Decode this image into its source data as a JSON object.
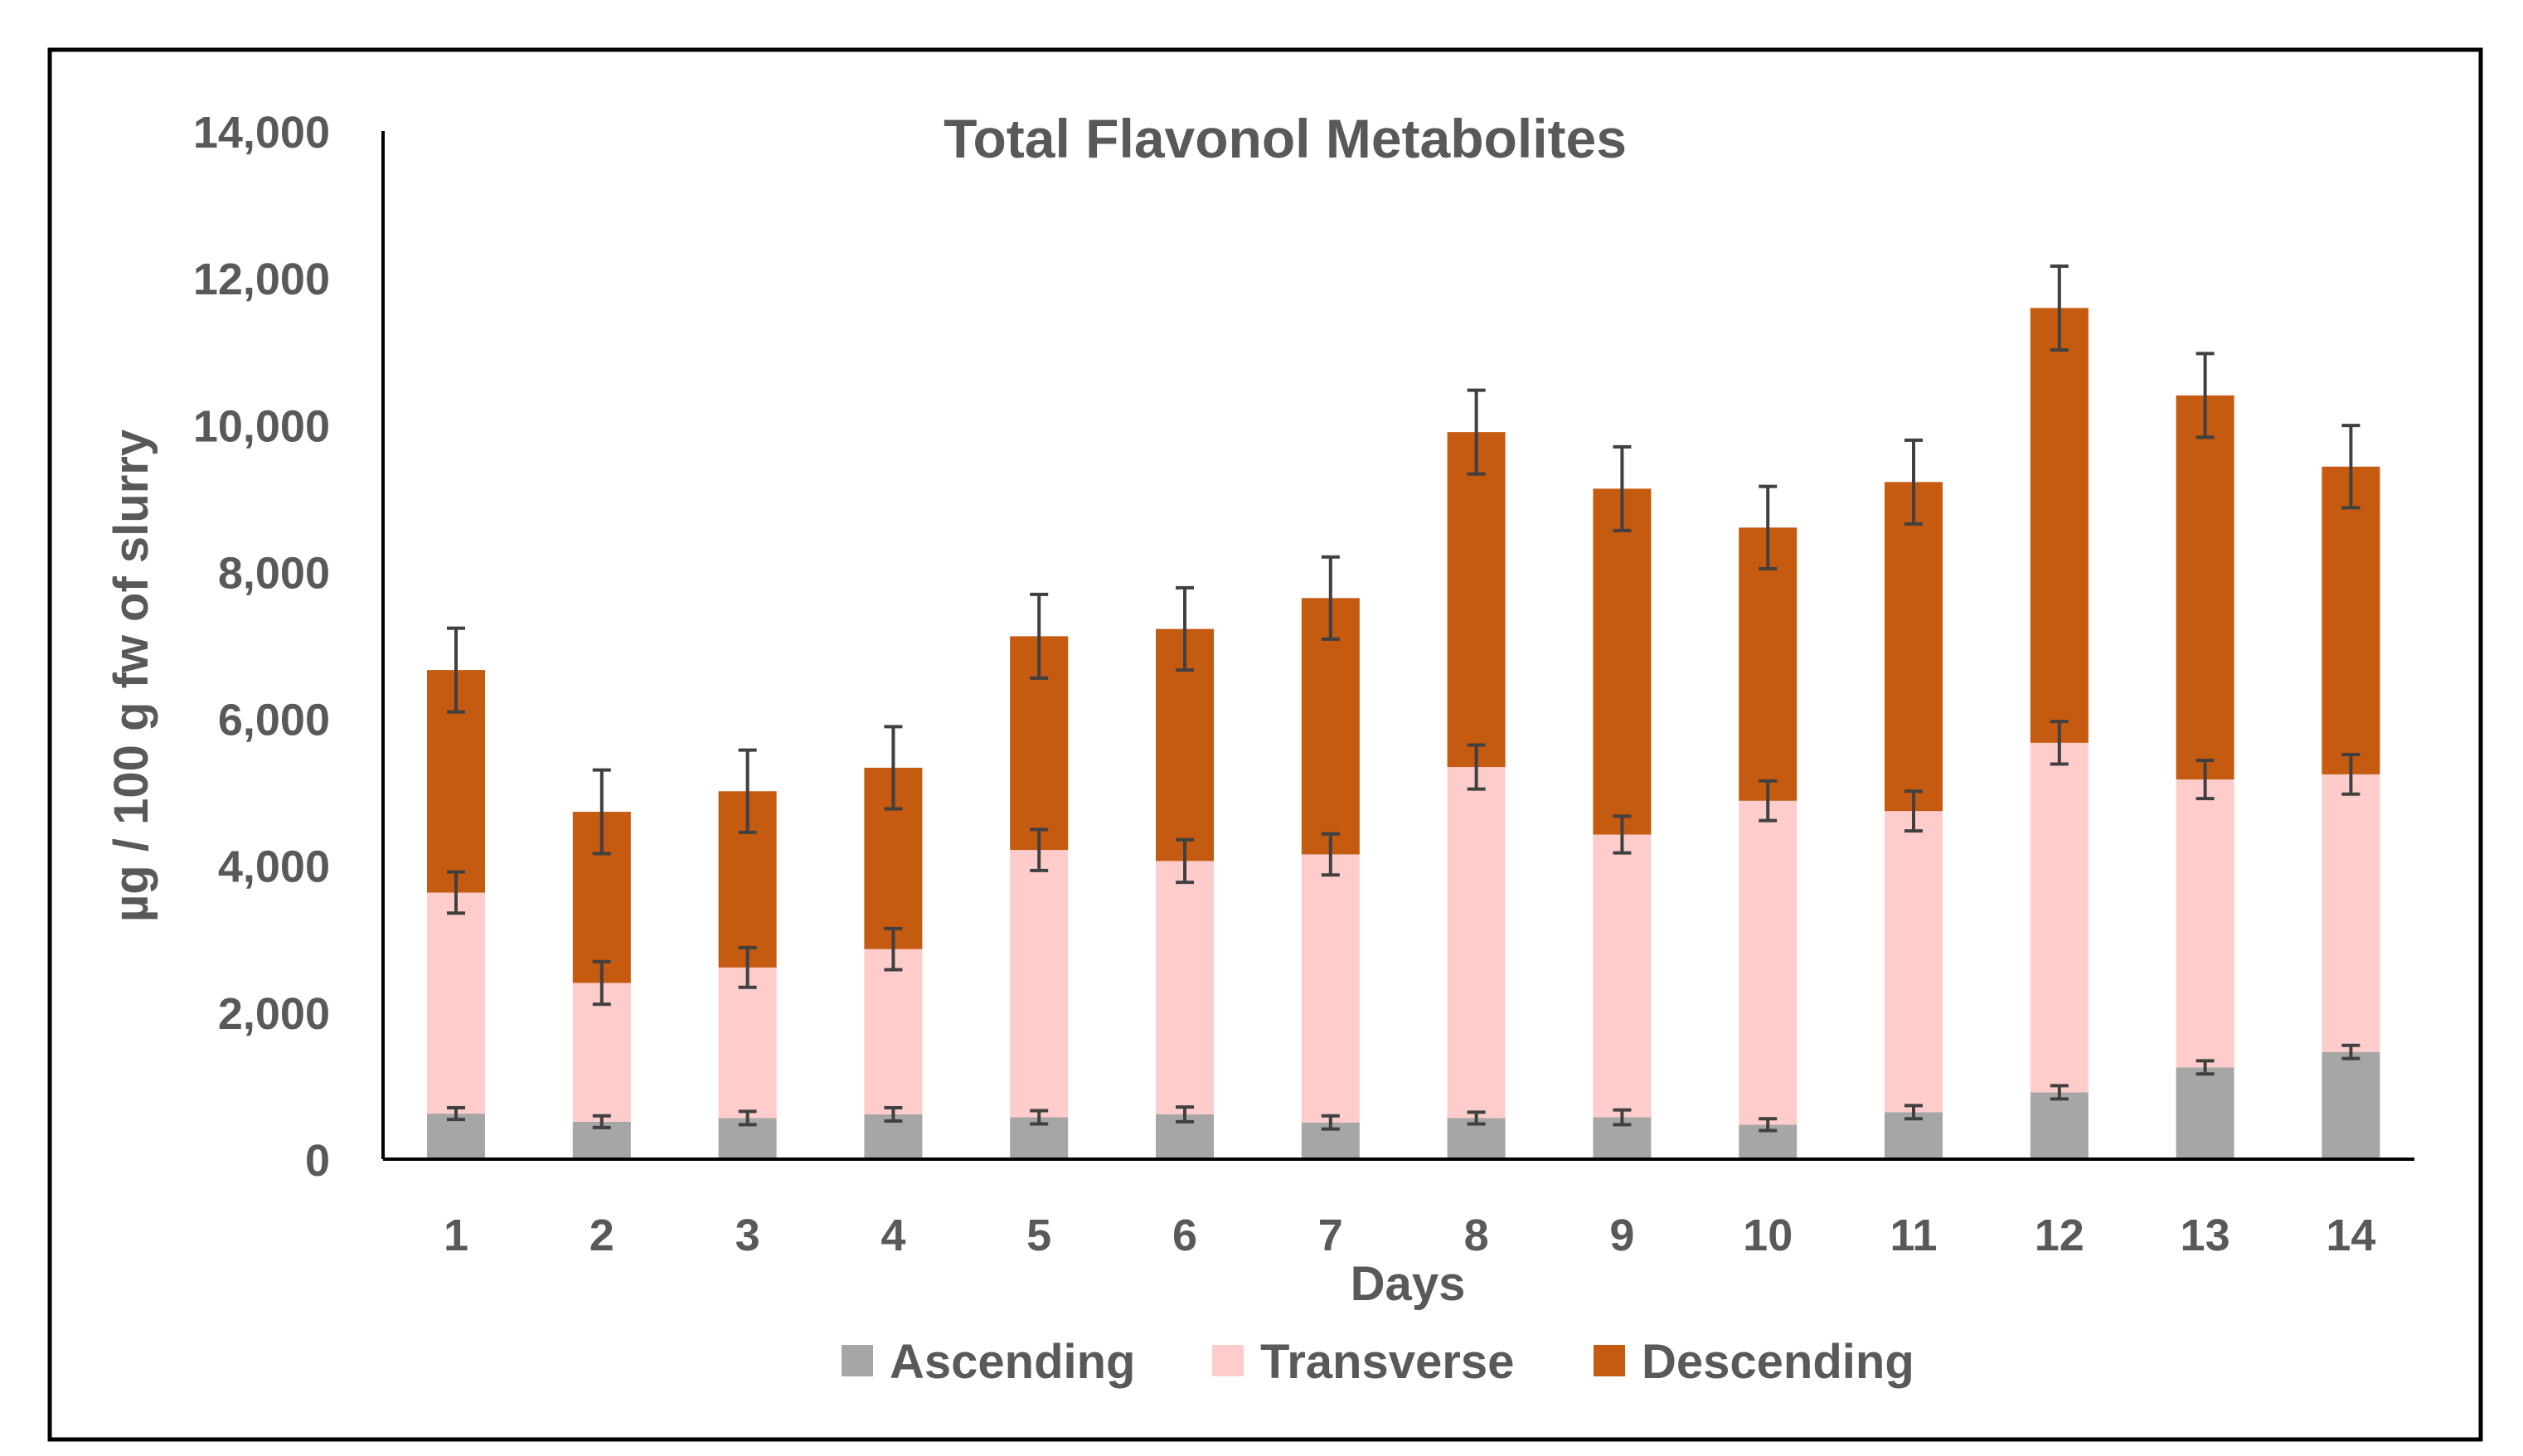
{
  "chart_data": {
    "type": "stacked-bar",
    "title": "Total Flavonol Metabolites",
    "xlabel": "Days",
    "ylabel": "µg / 100 g fw of slurry",
    "ylim": [
      0,
      14000
    ],
    "y_ticks": [
      0,
      2000,
      4000,
      6000,
      8000,
      10000,
      12000,
      14000
    ],
    "y_tick_labels": [
      "0",
      "2,000",
      "4,000",
      "6,000",
      "8,000",
      "10,000",
      "12,000",
      "14,000"
    ],
    "categories": [
      "1",
      "2",
      "3",
      "4",
      "5",
      "6",
      "7",
      "8",
      "9",
      "10",
      "11",
      "12",
      "13",
      "14"
    ],
    "legend_position": "bottom",
    "grid": false,
    "series": [
      {
        "name": "Ascending",
        "color": "#A6A6A6",
        "values": [
          620,
          510,
          560,
          610,
          570,
          610,
          500,
          560,
          570,
          470,
          640,
          910,
          1250,
          1460
        ],
        "errors": [
          80,
          80,
          90,
          90,
          90,
          100,
          90,
          80,
          100,
          80,
          90,
          90,
          90,
          90
        ]
      },
      {
        "name": "Transverse",
        "color": "#FFCCCC",
        "values": [
          3010,
          1890,
          2050,
          2250,
          3640,
          3450,
          3650,
          4780,
          3850,
          4410,
          4100,
          4760,
          3920,
          3780
        ],
        "errors": [
          280,
          290,
          270,
          280,
          280,
          290,
          280,
          300,
          250,
          270,
          270,
          290,
          260,
          270
        ]
      },
      {
        "name": "Descending",
        "color": "#C55A11",
        "values": [
          3030,
          2330,
          2400,
          2470,
          2910,
          3160,
          3490,
          4560,
          4710,
          3720,
          4480,
          5920,
          5230,
          4190
        ],
        "errors": [
          570,
          570,
          560,
          560,
          570,
          560,
          560,
          570,
          570,
          560,
          570,
          570,
          570,
          560
        ]
      }
    ]
  }
}
